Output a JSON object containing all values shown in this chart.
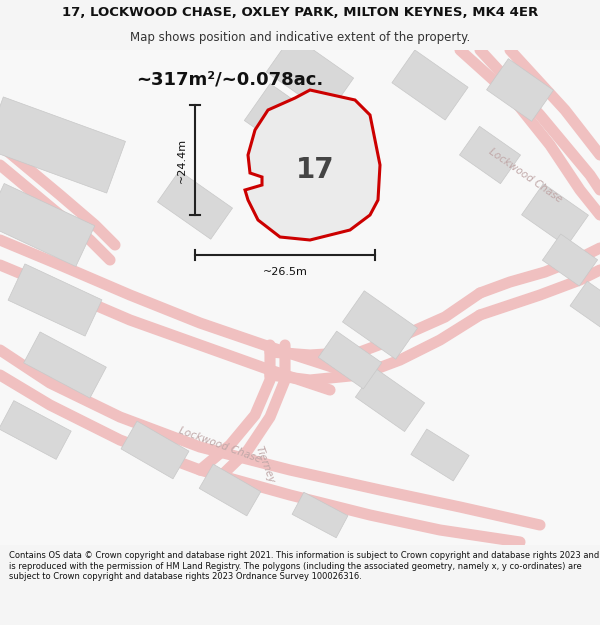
{
  "title": "17, LOCKWOOD CHASE, OXLEY PARK, MILTON KEYNES, MK4 4ER",
  "subtitle": "Map shows position and indicative extent of the property.",
  "area_label": "~317m²/~0.078ac.",
  "property_number": "17",
  "dim_height": "~24.4m",
  "dim_width": "~26.5m",
  "footer": "Contains OS data © Crown copyright and database right 2021. This information is subject to Crown copyright and database rights 2023 and is reproduced with the permission of HM Land Registry. The polygons (including the associated geometry, namely x, y co-ordinates) are subject to Crown copyright and database rights 2023 Ordnance Survey 100026316.",
  "bg_color": "#f5f5f5",
  "map_bg": "#ffffff",
  "building_color": "#d8d8d8",
  "building_edge": "#c8c8c8",
  "road_color": "#f0c0c0",
  "road_edge_color": "#e8b8b8",
  "property_outline_color": "#cc0000",
  "property_fill_color": "#e8e8e8",
  "dim_line_color": "#222222",
  "road_label_color": "#c0a8a8",
  "title_fontsize": 9.5,
  "subtitle_fontsize": 8.5,
  "area_fontsize": 13,
  "number_fontsize": 20,
  "dim_fontsize": 8,
  "footer_fontsize": 6.0,
  "road_label_fontsize": 7.5
}
